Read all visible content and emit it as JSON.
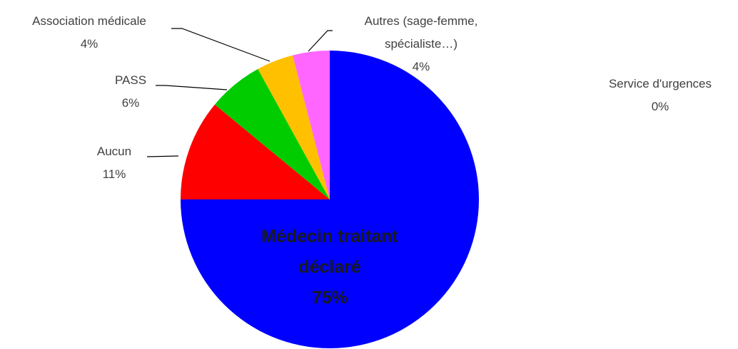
{
  "chart_data": {
    "type": "pie",
    "categories": [
      "Médecin traitant déclaré",
      "Aucun",
      "PASS",
      "Association médicale",
      "Autres (sage-femme, spécialiste…)",
      "Service d'urgences"
    ],
    "values": [
      75,
      11,
      6,
      4,
      4,
      0
    ],
    "value_labels": [
      "75%",
      "11%",
      "6%",
      "4%",
      "4%",
      "0%"
    ],
    "colors": [
      "#0000ff",
      "#ff0000",
      "#00cc00",
      "#ffc000",
      "#ff66ff",
      "#00b0f0"
    ]
  }
}
